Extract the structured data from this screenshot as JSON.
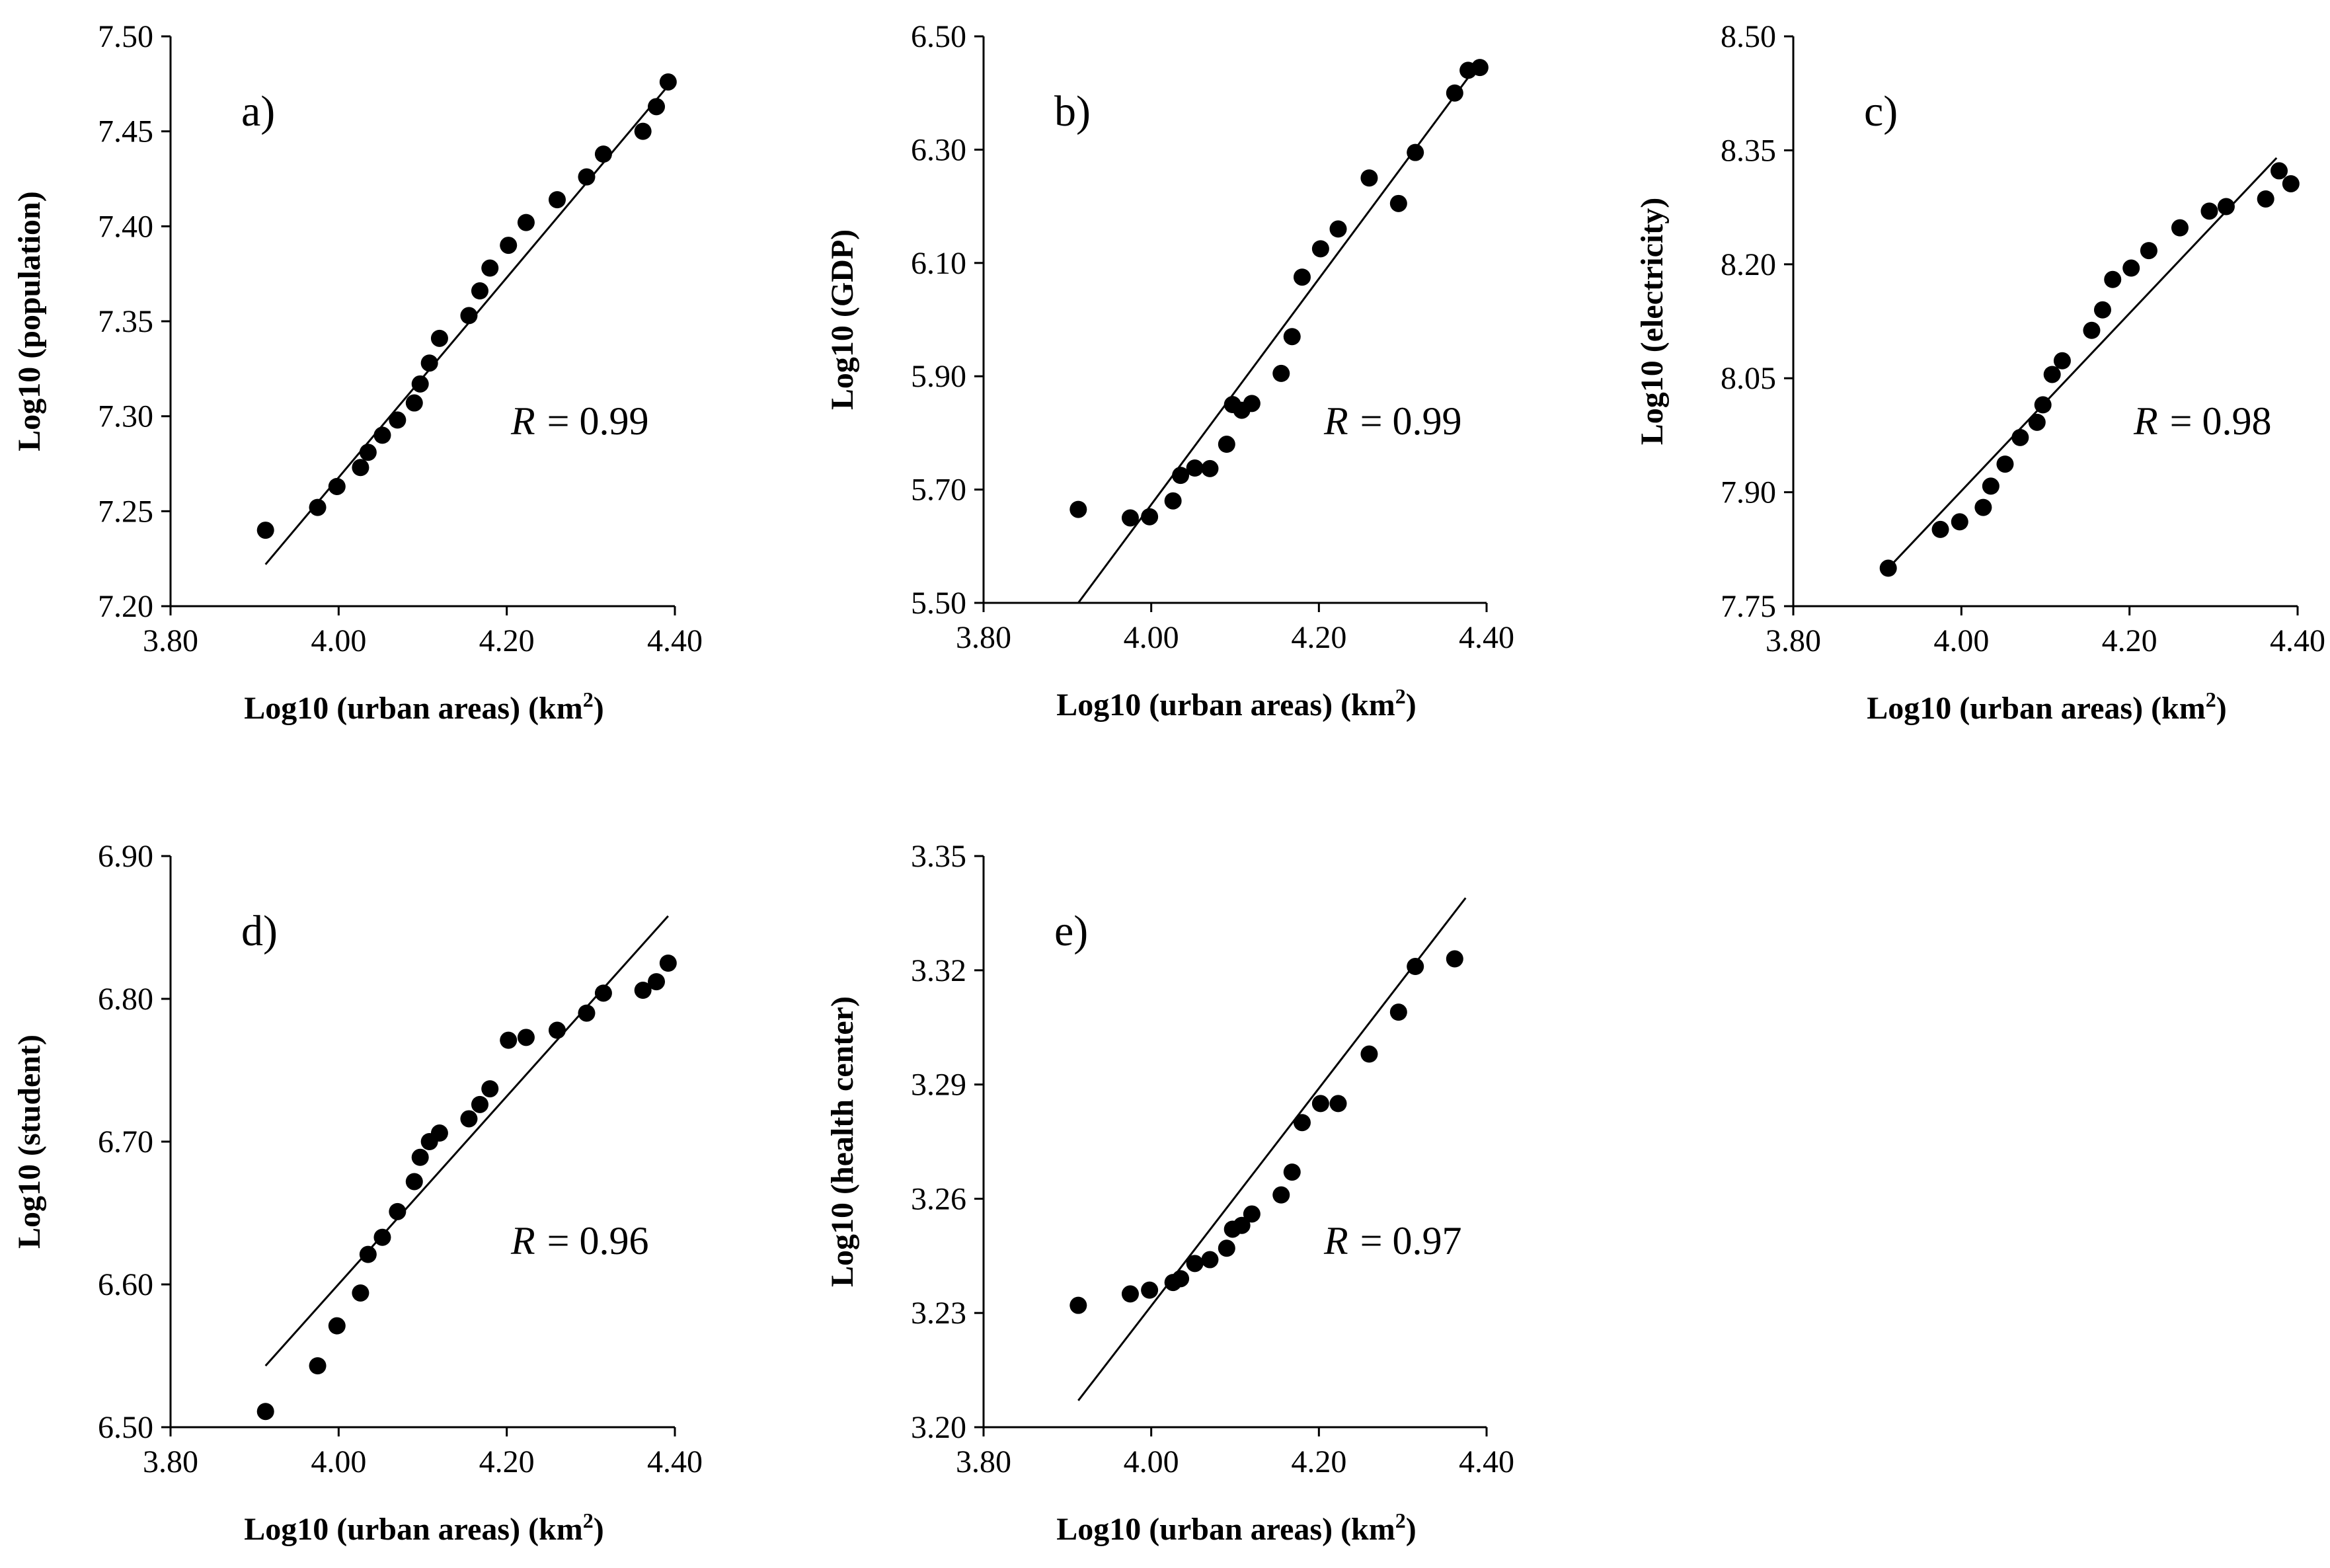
{
  "chart_data": [
    {
      "type": "scatter",
      "panel_label": "a)",
      "xlabel": "Log10 (urban areas) (km",
      "xlabel_sup": "2",
      "xlabel_close": ")",
      "ylabel": "Log10 (population)",
      "xlim": [
        3.8,
        4.4
      ],
      "ylim": [
        7.2,
        7.5
      ],
      "xticks": [
        "3.80",
        "4.00",
        "4.20",
        "4.40"
      ],
      "yticks": [
        "7.20",
        "7.25",
        "7.30",
        "7.35",
        "7.40",
        "7.45",
        "7.50"
      ],
      "r_label": "R",
      "r_eq": "= 0.99",
      "trendline": [
        [
          3.913,
          7.222
        ],
        [
          4.392,
          7.474
        ]
      ],
      "points": [
        [
          3.913,
          7.24
        ],
        [
          3.975,
          7.252
        ],
        [
          3.998,
          7.263
        ],
        [
          4.026,
          7.273
        ],
        [
          4.035,
          7.281
        ],
        [
          4.052,
          7.29
        ],
        [
          4.07,
          7.298
        ],
        [
          4.09,
          7.307
        ],
        [
          4.097,
          7.317
        ],
        [
          4.108,
          7.328
        ],
        [
          4.12,
          7.341
        ],
        [
          4.155,
          7.353
        ],
        [
          4.168,
          7.366
        ],
        [
          4.18,
          7.378
        ],
        [
          4.202,
          7.39
        ],
        [
          4.223,
          7.402
        ],
        [
          4.26,
          7.414
        ],
        [
          4.295,
          7.426
        ],
        [
          4.315,
          7.438
        ],
        [
          4.362,
          7.45
        ],
        [
          4.378,
          7.463
        ],
        [
          4.392,
          7.476
        ]
      ]
    },
    {
      "type": "scatter",
      "panel_label": "b)",
      "xlabel": "Log10 (urban areas) (km",
      "xlabel_sup": "2",
      "xlabel_close": ")",
      "ylabel": "Log10 (GDP)",
      "xlim": [
        3.8,
        4.4
      ],
      "ylim": [
        5.5,
        6.5
      ],
      "xticks": [
        "3.80",
        "4.00",
        "4.20",
        "4.40"
      ],
      "yticks": [
        "5.50",
        "5.70",
        "5.90",
        "6.10",
        "6.30",
        "6.50"
      ],
      "r_label": "R",
      "r_eq": "= 0.99",
      "trendline": [
        [
          3.913,
          5.5
        ],
        [
          4.392,
          6.455
        ]
      ],
      "points": [
        [
          3.913,
          5.665
        ],
        [
          3.975,
          5.65
        ],
        [
          3.998,
          5.652
        ],
        [
          4.026,
          5.68
        ],
        [
          4.035,
          5.725
        ],
        [
          4.052,
          5.738
        ],
        [
          4.07,
          5.737
        ],
        [
          4.09,
          5.78
        ],
        [
          4.097,
          5.85
        ],
        [
          4.108,
          5.84
        ],
        [
          4.12,
          5.852
        ],
        [
          4.155,
          5.905
        ],
        [
          4.168,
          5.97
        ],
        [
          4.18,
          6.075
        ],
        [
          4.202,
          6.125
        ],
        [
          4.223,
          6.16
        ],
        [
          4.26,
          6.25
        ],
        [
          4.295,
          6.205
        ],
        [
          4.315,
          6.295
        ],
        [
          4.362,
          6.4
        ],
        [
          4.378,
          6.44
        ],
        [
          4.392,
          6.445
        ]
      ]
    },
    {
      "type": "scatter",
      "panel_label": "c)",
      "xlabel": "Log10 (urban areas) (km",
      "xlabel_sup": "2",
      "xlabel_close": ")",
      "ylabel": "Log10 (electricity)",
      "xlim": [
        3.8,
        4.4
      ],
      "ylim": [
        7.75,
        8.5
      ],
      "xticks": [
        "3.80",
        "4.00",
        "4.20",
        "4.40"
      ],
      "yticks": [
        "7.75",
        "7.90",
        "8.05",
        "8.20",
        "8.35",
        "8.50"
      ],
      "r_label": "R",
      "r_eq": "= 0.98",
      "trendline": [
        [
          3.913,
          7.8
        ],
        [
          4.375,
          8.34
        ]
      ],
      "points": [
        [
          3.913,
          7.8
        ],
        [
          3.975,
          7.851
        ],
        [
          3.998,
          7.861
        ],
        [
          4.026,
          7.88
        ],
        [
          4.035,
          7.908
        ],
        [
          4.052,
          7.937
        ],
        [
          4.07,
          7.972
        ],
        [
          4.09,
          7.992
        ],
        [
          4.097,
          8.015
        ],
        [
          4.108,
          8.055
        ],
        [
          4.12,
          8.073
        ],
        [
          4.155,
          8.113
        ],
        [
          4.168,
          8.14
        ],
        [
          4.18,
          8.18
        ],
        [
          4.202,
          8.195
        ],
        [
          4.223,
          8.218
        ],
        [
          4.26,
          8.248
        ],
        [
          4.295,
          8.27
        ],
        [
          4.315,
          8.276
        ],
        [
          4.362,
          8.286
        ],
        [
          4.378,
          8.323
        ],
        [
          4.392,
          8.306
        ]
      ]
    },
    {
      "type": "scatter",
      "panel_label": "d)",
      "xlabel": "Log10 (urban areas) (km",
      "xlabel_sup": "2",
      "xlabel_close": ")",
      "ylabel": "Log10 (student)",
      "xlim": [
        3.8,
        4.4
      ],
      "ylim": [
        6.5,
        6.9
      ],
      "xticks": [
        "3.80",
        "4.00",
        "4.20",
        "4.40"
      ],
      "yticks": [
        "6.50",
        "6.60",
        "6.70",
        "6.80",
        "6.90"
      ],
      "r_label": "R",
      "r_eq": "= 0.96",
      "trendline": [
        [
          3.913,
          6.543
        ],
        [
          4.392,
          6.858
        ]
      ],
      "points": [
        [
          3.913,
          6.511
        ],
        [
          3.975,
          6.543
        ],
        [
          3.998,
          6.571
        ],
        [
          4.026,
          6.594
        ],
        [
          4.035,
          6.621
        ],
        [
          4.052,
          6.633
        ],
        [
          4.07,
          6.651
        ],
        [
          4.09,
          6.672
        ],
        [
          4.097,
          6.689
        ],
        [
          4.108,
          6.7
        ],
        [
          4.12,
          6.706
        ],
        [
          4.155,
          6.716
        ],
        [
          4.168,
          6.726
        ],
        [
          4.18,
          6.737
        ],
        [
          4.202,
          6.771
        ],
        [
          4.223,
          6.773
        ],
        [
          4.26,
          6.778
        ],
        [
          4.295,
          6.79
        ],
        [
          4.315,
          6.804
        ],
        [
          4.362,
          6.806
        ],
        [
          4.378,
          6.812
        ],
        [
          4.392,
          6.825
        ]
      ]
    },
    {
      "type": "scatter",
      "panel_label": "e)",
      "xlabel": "Log10 (urban areas) (km",
      "xlabel_sup": "2",
      "xlabel_close": ")",
      "ylabel": "Log10 (health center)",
      "xlim": [
        3.8,
        4.4
      ],
      "ylim": [
        3.2,
        3.35
      ],
      "xticks": [
        "3.80",
        "4.00",
        "4.20",
        "4.40"
      ],
      "yticks": [
        "3.20",
        "3.23",
        "3.26",
        "3.29",
        "3.32",
        "3.35"
      ],
      "r_label": "R",
      "r_eq": "= 0.97",
      "trendline": [
        [
          3.913,
          3.207
        ],
        [
          4.375,
          3.339
        ]
      ],
      "points": [
        [
          3.913,
          3.232
        ],
        [
          3.975,
          3.235
        ],
        [
          3.998,
          3.236
        ],
        [
          4.026,
          3.238
        ],
        [
          4.035,
          3.239
        ],
        [
          4.052,
          3.243
        ],
        [
          4.07,
          3.244
        ],
        [
          4.09,
          3.247
        ],
        [
          4.097,
          3.252
        ],
        [
          4.108,
          3.253
        ],
        [
          4.12,
          3.256
        ],
        [
          4.155,
          3.261
        ],
        [
          4.168,
          3.267
        ],
        [
          4.18,
          3.28
        ],
        [
          4.202,
          3.285
        ],
        [
          4.223,
          3.285
        ],
        [
          4.26,
          3.298
        ],
        [
          4.295,
          3.309
        ],
        [
          4.315,
          3.321
        ],
        [
          4.362,
          3.323
        ]
      ]
    }
  ]
}
